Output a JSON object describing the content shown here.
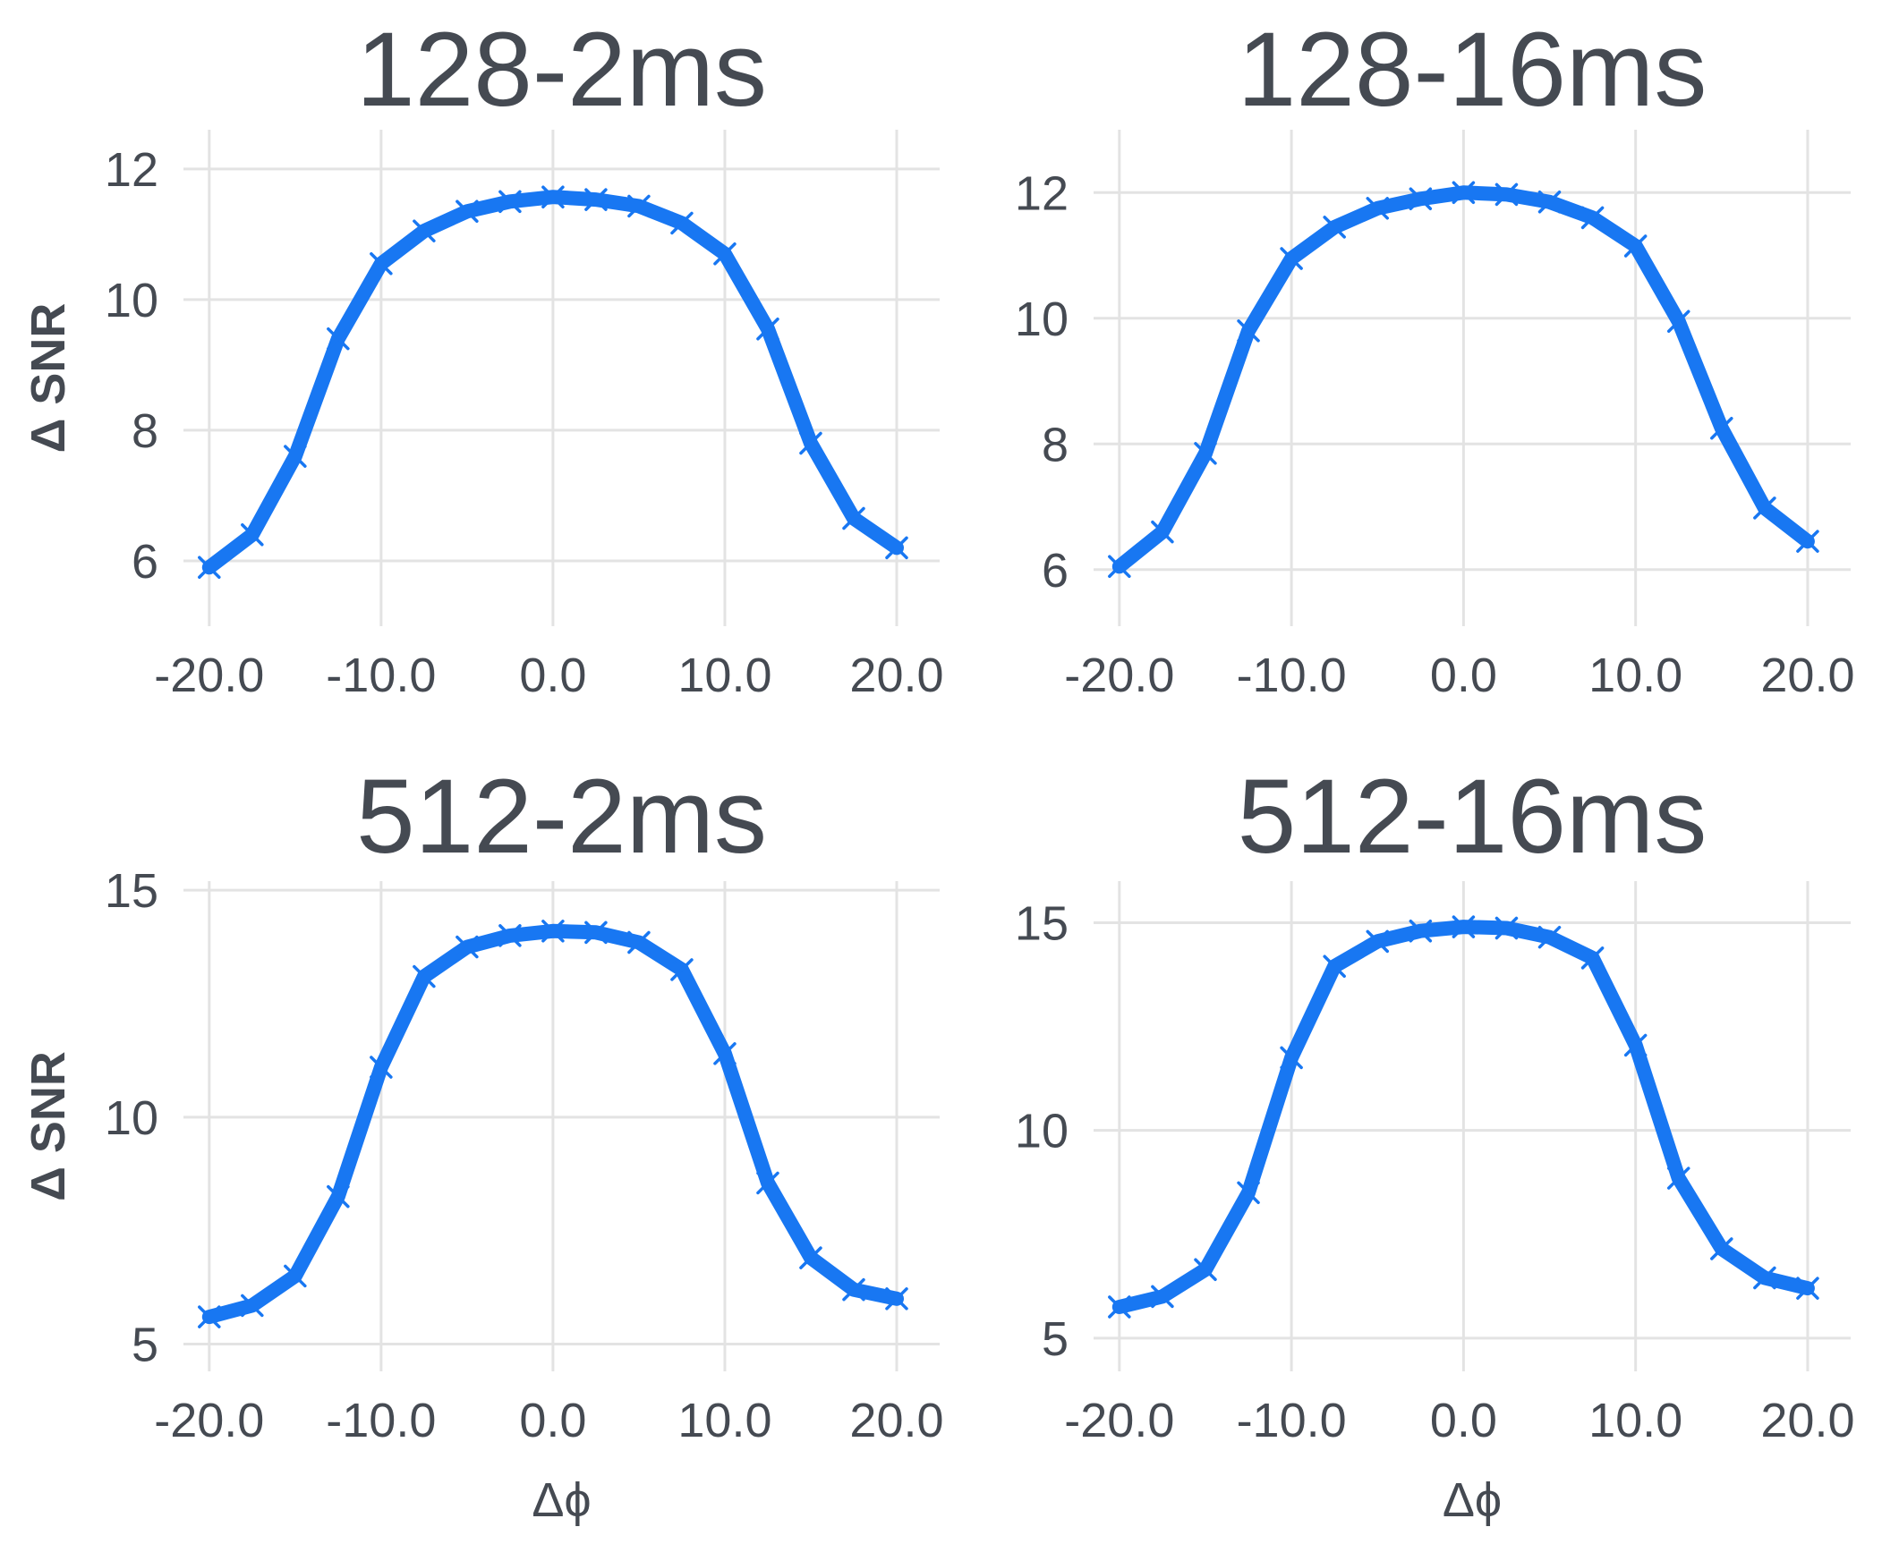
{
  "chart_data": [
    {
      "type": "line",
      "title": "128-2ms",
      "xlabel": "",
      "ylabel": "Δ SNR",
      "xlim": [
        -21.5,
        22.5
      ],
      "ylim": [
        5.0,
        12.6
      ],
      "xticks": [
        -20,
        -10,
        0,
        10,
        20
      ],
      "xtick_labels": [
        "-20.0",
        "-10.0",
        "0.0",
        "10.0",
        "20.0"
      ],
      "yticks": [
        6,
        8,
        10,
        12
      ],
      "ytick_labels": [
        "6",
        "8",
        "10",
        "12"
      ],
      "grid": true,
      "marker": "x",
      "color": "#1877f2",
      "x": [
        -20,
        -17.5,
        -15,
        -12.5,
        -10,
        -7.5,
        -5,
        -2.5,
        0,
        2.5,
        5,
        7.5,
        10,
        12.5,
        15,
        17.5,
        20
      ],
      "y": [
        5.9,
        6.4,
        7.6,
        9.4,
        10.55,
        11.05,
        11.35,
        11.5,
        11.57,
        11.53,
        11.43,
        11.17,
        10.7,
        9.55,
        7.8,
        6.65,
        6.2
      ]
    },
    {
      "type": "line",
      "title": "128-16ms",
      "xlabel": "",
      "ylabel": "",
      "xlim": [
        -21.5,
        22.5
      ],
      "ylim": [
        5.1,
        13.0
      ],
      "xticks": [
        -20,
        -10,
        0,
        10,
        20
      ],
      "xtick_labels": [
        "-20.0",
        "-10.0",
        "0.0",
        "10.0",
        "20.0"
      ],
      "yticks": [
        6,
        8,
        10,
        12
      ],
      "ytick_labels": [
        "6",
        "8",
        "10",
        "12"
      ],
      "grid": true,
      "marker": "x",
      "color": "#1877f2",
      "x": [
        -20,
        -17.5,
        -15,
        -12.5,
        -10,
        -7.5,
        -5,
        -2.5,
        0,
        2.5,
        5,
        7.5,
        10,
        12.5,
        15,
        17.5,
        20
      ],
      "y": [
        6.05,
        6.6,
        7.85,
        9.8,
        10.95,
        11.45,
        11.75,
        11.9,
        12.0,
        11.97,
        11.85,
        11.6,
        11.15,
        9.95,
        8.25,
        6.98,
        6.45
      ]
    },
    {
      "type": "line",
      "title": "512-2ms",
      "xlabel": "Δϕ",
      "ylabel": "Δ SNR",
      "xlim": [
        -21.5,
        22.5
      ],
      "ylim": [
        4.4,
        15.2
      ],
      "xticks": [
        -20,
        -10,
        0,
        10,
        20
      ],
      "xtick_labels": [
        "-20.0",
        "-10.0",
        "0.0",
        "10.0",
        "20.0"
      ],
      "yticks": [
        5,
        10,
        15
      ],
      "ytick_labels": [
        "5",
        "10",
        "15"
      ],
      "grid": true,
      "marker": "x",
      "color": "#1877f2",
      "x": [
        -20,
        -17.5,
        -15,
        -12.5,
        -10,
        -7.5,
        -5,
        -2.5,
        0,
        2.5,
        5,
        7.5,
        10,
        12.5,
        15,
        17.5,
        20
      ],
      "y": [
        5.6,
        5.85,
        6.5,
        8.25,
        11.1,
        13.1,
        13.75,
        14.0,
        14.1,
        14.07,
        13.85,
        13.25,
        11.4,
        8.55,
        6.9,
        6.2,
        6.0
      ]
    },
    {
      "type": "line",
      "title": "512-16ms",
      "xlabel": "Δϕ",
      "ylabel": "",
      "xlim": [
        -21.5,
        22.5
      ],
      "ylim": [
        4.2,
        16.0
      ],
      "xticks": [
        -20,
        -10,
        0,
        10,
        20
      ],
      "xtick_labels": [
        "-20.0",
        "-10.0",
        "0.0",
        "10.0",
        "20.0"
      ],
      "yticks": [
        5,
        10,
        15
      ],
      "ytick_labels": [
        "5",
        "10",
        "15"
      ],
      "grid": true,
      "marker": "x",
      "color": "#1877f2",
      "x": [
        -20,
        -17.5,
        -15,
        -12.5,
        -10,
        -7.5,
        -5,
        -2.5,
        0,
        2.5,
        5,
        7.5,
        10,
        12.5,
        15,
        17.5,
        20
      ],
      "y": [
        5.75,
        6.0,
        6.65,
        8.5,
        11.75,
        13.95,
        14.55,
        14.8,
        14.9,
        14.87,
        14.65,
        14.15,
        12.05,
        8.85,
        7.15,
        6.45,
        6.2
      ]
    }
  ]
}
